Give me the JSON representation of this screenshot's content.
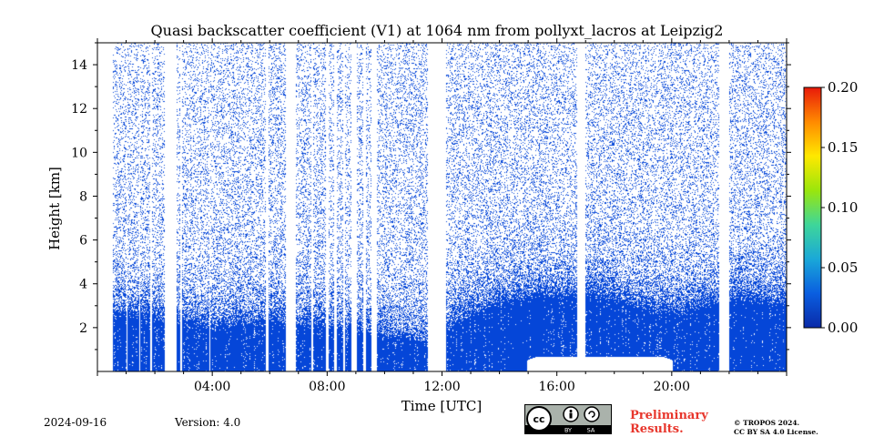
{
  "chart_data": {
    "type": "heatmap",
    "title": "Quasi backscatter coefficient (V1) at 1064 nm from pollyxt_lacros at Leipzig2",
    "xlabel": "Time [UTC]",
    "ylabel": "Height [km]",
    "xlim_hours": [
      0,
      24
    ],
    "ylim_km": [
      0,
      15
    ],
    "xticks": [
      {
        "hour": 4,
        "label": "04:00"
      },
      {
        "hour": 8,
        "label": "08:00"
      },
      {
        "hour": 12,
        "label": "12:00"
      },
      {
        "hour": 16,
        "label": "16:00"
      },
      {
        "hour": 20,
        "label": "20:00"
      }
    ],
    "yticks": [
      {
        "value": 2,
        "label": "2"
      },
      {
        "value": 4,
        "label": "4"
      },
      {
        "value": 6,
        "label": "6"
      },
      {
        "value": 8,
        "label": "8"
      },
      {
        "value": 10,
        "label": "10"
      },
      {
        "value": 12,
        "label": "12"
      },
      {
        "value": 14,
        "label": "14"
      }
    ],
    "colorbar": {
      "range": [
        0.0,
        0.2
      ],
      "ticks": [
        {
          "value": 0.0,
          "label": "0.00"
        },
        {
          "value": 0.05,
          "label": "0.05"
        },
        {
          "value": 0.1,
          "label": "0.10"
        },
        {
          "value": 0.15,
          "label": "0.15"
        },
        {
          "value": 0.2,
          "label": "0.20"
        }
      ],
      "colors": [
        "#0a2aa8",
        "#0a5ee0",
        "#1aa8d8",
        "#3ed69a",
        "#9ae60c",
        "#ffe800",
        "#ff8a00",
        "#e81a0a"
      ]
    },
    "data_color": "#0546d8",
    "data_start_hour": 0.5,
    "data_end_hour": 24.0,
    "gaps_hours": [
      [
        0.5,
        0.55
      ],
      [
        1.0,
        1.05
      ],
      [
        1.45,
        1.5
      ],
      [
        1.85,
        1.9
      ],
      [
        2.35,
        2.75
      ],
      [
        2.9,
        2.95
      ],
      [
        3.9,
        3.94
      ],
      [
        5.85,
        5.95
      ],
      [
        6.55,
        6.9
      ],
      [
        7.45,
        7.52
      ],
      [
        7.95,
        8.05
      ],
      [
        8.25,
        8.35
      ],
      [
        8.55,
        8.62
      ],
      [
        8.85,
        9.05
      ],
      [
        9.25,
        9.35
      ],
      [
        9.55,
        9.72
      ],
      [
        11.5,
        12.15
      ],
      [
        16.7,
        17.0
      ],
      [
        21.65,
        22.0
      ]
    ],
    "mixing_layer_km": [
      [
        0.5,
        2.4
      ],
      [
        2.0,
        2.3
      ],
      [
        4.0,
        1.8
      ],
      [
        6.0,
        2.1
      ],
      [
        8.0,
        1.9
      ],
      [
        10.0,
        1.4
      ],
      [
        11.5,
        1.1
      ],
      [
        12.2,
        1.9
      ],
      [
        14.0,
        2.9
      ],
      [
        15.5,
        3.2
      ],
      [
        16.7,
        3.3
      ],
      [
        17.0,
        3.4
      ],
      [
        18.5,
        2.9
      ],
      [
        20.0,
        2.5
      ],
      [
        21.5,
        2.9
      ],
      [
        22.0,
        3.1
      ],
      [
        24.0,
        2.9
      ]
    ],
    "low_gap": {
      "from_hour": 14.95,
      "to_hour": 20.05,
      "top_km": 0.65,
      "slope_km": 0.15
    }
  },
  "footer": {
    "date": "2024-09-16",
    "version": "Version: 4.0",
    "license_badge": "CC BY SA",
    "preliminary_line1": "Preliminary",
    "preliminary_line2": "Results.",
    "copyright_line1": "© TROPOS 2024.",
    "copyright_line2": "CC BY SA 4.0 License."
  }
}
